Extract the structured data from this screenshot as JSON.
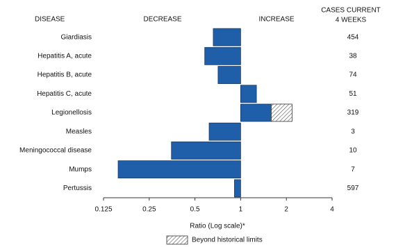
{
  "chart_data": {
    "type": "bar",
    "orientation": "horizontal",
    "headers": {
      "disease": "DISEASE",
      "decrease": "DECREASE",
      "increase": "INCREASE",
      "cases": [
        "CASES CURRENT",
        "4 WEEKS"
      ]
    },
    "categories": [
      "Giardiasis",
      "Hepatitis A, acute",
      "Hepatitis B, acute",
      "Hepatitis C, acute",
      "Legionellosis",
      "Measles",
      "Meningococcal disease",
      "Mumps",
      "Pertussis"
    ],
    "values": [
      0.66,
      0.58,
      0.71,
      1.27,
      2.18,
      0.62,
      0.35,
      0.156,
      0.91
    ],
    "historical_limits": [
      null,
      null,
      null,
      null,
      1.59,
      null,
      null,
      null,
      null
    ],
    "cases": [
      454,
      38,
      74,
      51,
      319,
      3,
      10,
      7,
      597
    ],
    "color": "#1f5ea8",
    "xlabel": "Ratio (Log scale)*",
    "log_scale": true,
    "xlim": [
      0.125,
      4
    ],
    "xticks": [
      0.125,
      0.25,
      0.5,
      1,
      2,
      4
    ],
    "legend": "Beyond historical limits"
  }
}
